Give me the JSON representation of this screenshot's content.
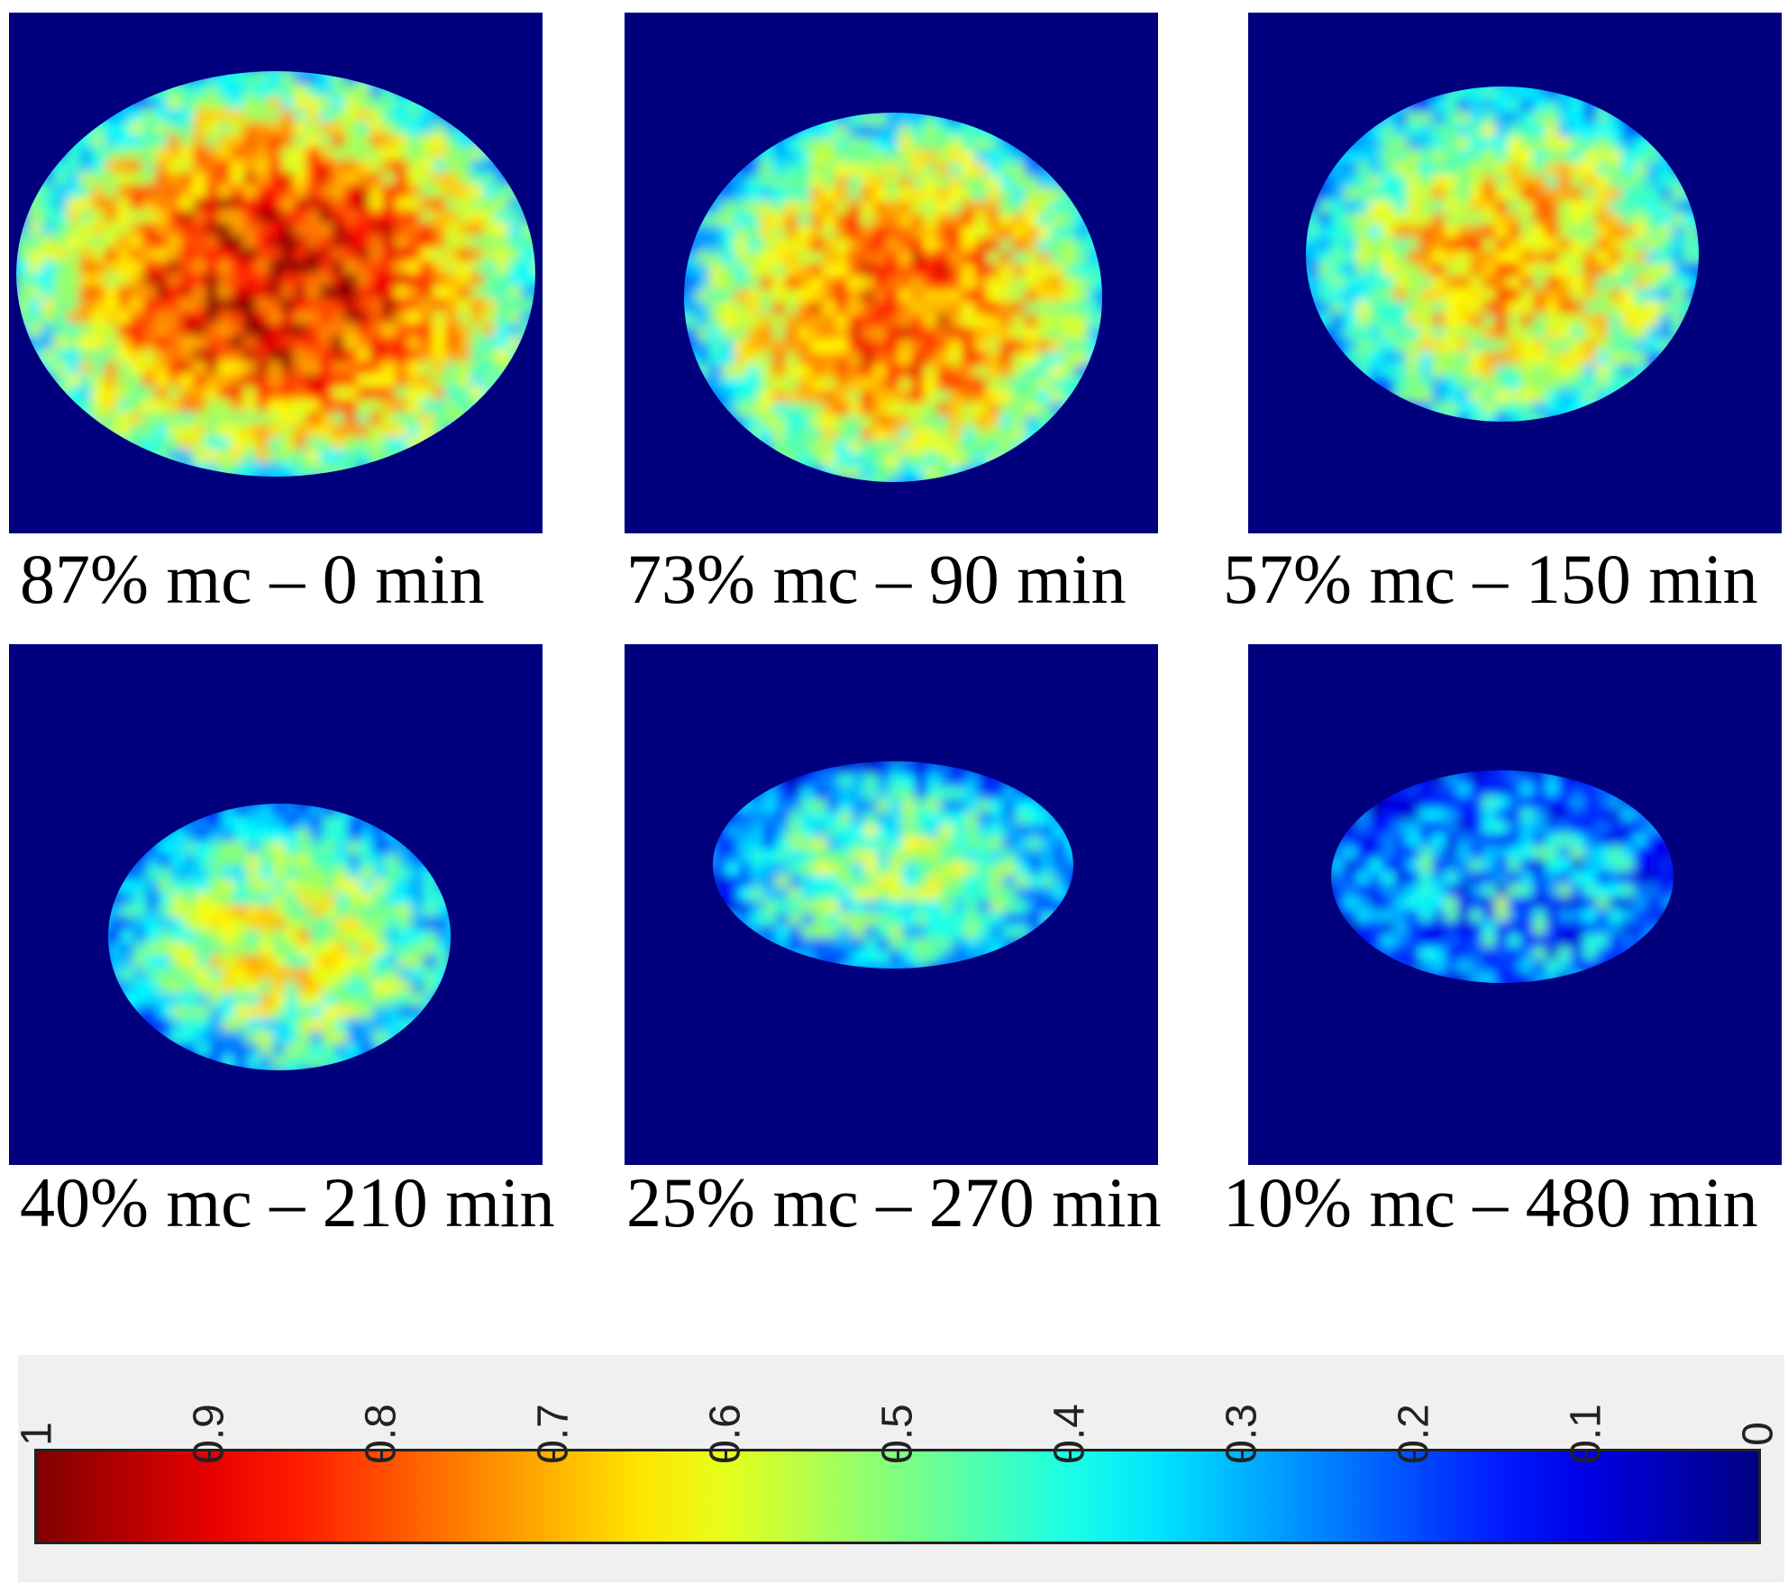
{
  "chart_data": {
    "type": "heatmap",
    "panels": [
      {
        "caption": "87% mc – 0 min",
        "moisture_content_pct": 87,
        "time_min": 0
      },
      {
        "caption": "73% mc – 90 min",
        "moisture_content_pct": 73,
        "time_min": 90
      },
      {
        "caption": "57% mc – 150 min",
        "moisture_content_pct": 57,
        "time_min": 150
      },
      {
        "caption": "40% mc – 210 min",
        "moisture_content_pct": 40,
        "time_min": 210
      },
      {
        "caption": "25% mc – 270 min",
        "moisture_content_pct": 25,
        "time_min": 270
      },
      {
        "caption": "10% mc – 480 min",
        "moisture_content_pct": 10,
        "time_min": 480
      }
    ],
    "colorbar": {
      "colormap": "jet (reversed)",
      "range": [
        0,
        1
      ],
      "ticks": [
        "1",
        "0.9",
        "0.8",
        "0.7",
        "0.6",
        "0.5",
        "0.4",
        "0.3",
        "0.2",
        "0.1",
        "0"
      ],
      "background_color": "#00007f"
    }
  }
}
